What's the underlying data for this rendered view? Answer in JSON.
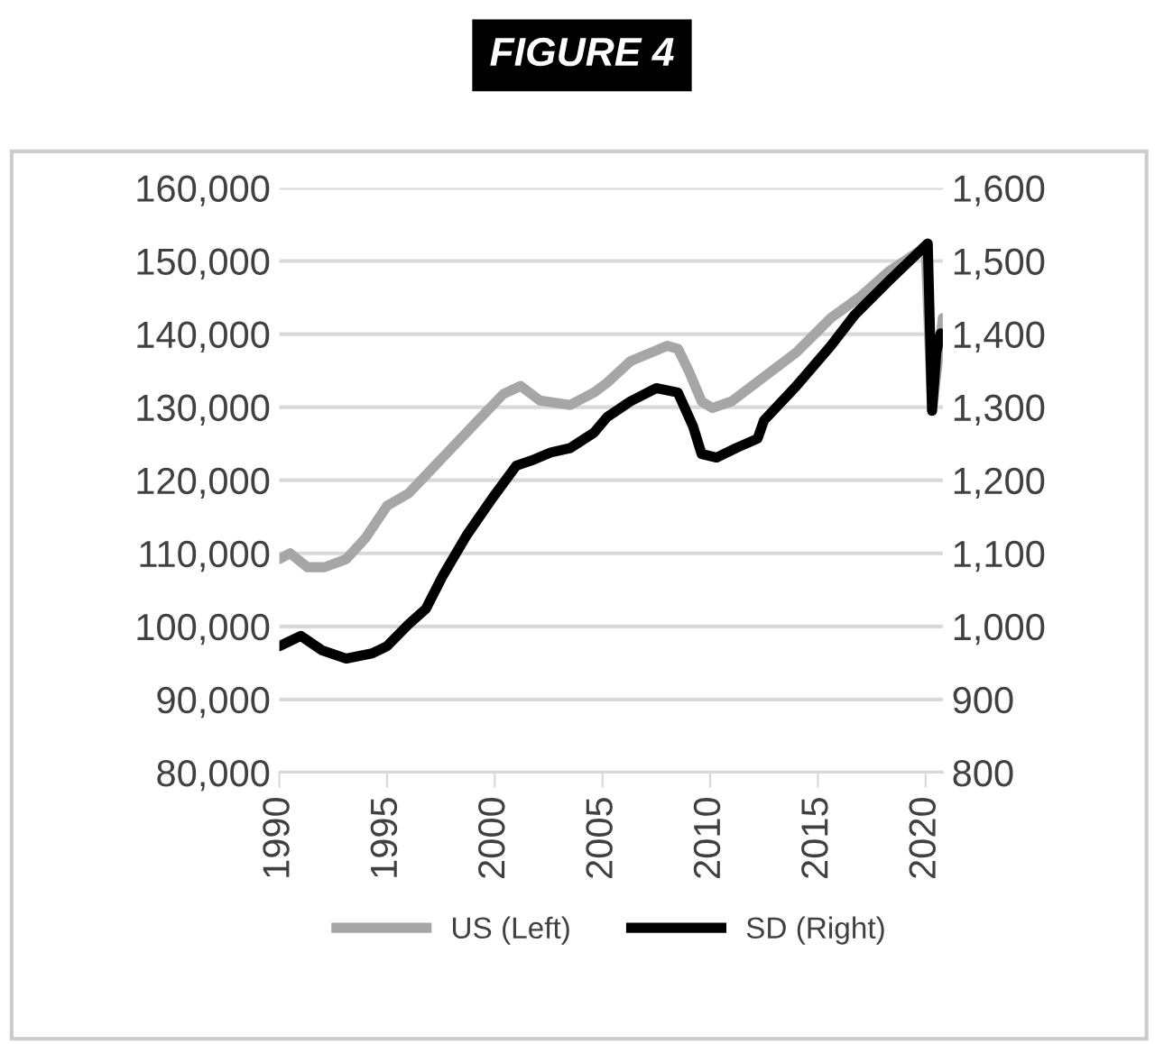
{
  "chart_data": {
    "type": "line",
    "title": "FIGURE 4",
    "xlim": [
      1990,
      2020.8
    ],
    "xticks": [
      1990,
      1995,
      2000,
      2005,
      2010,
      2015,
      2020
    ],
    "ylim": [
      80000,
      160000
    ],
    "yticks": [
      {
        "value": 80000,
        "label": "80,000"
      },
      {
        "value": 90000,
        "label": "90,000"
      },
      {
        "value": 100000,
        "label": "100,000"
      },
      {
        "value": 110000,
        "label": "110,000"
      },
      {
        "value": 120000,
        "label": "120,000"
      },
      {
        "value": 130000,
        "label": "130,000"
      },
      {
        "value": 140000,
        "label": "140,000"
      },
      {
        "value": 150000,
        "label": "150,000"
      },
      {
        "value": 160000,
        "label": "160,000"
      }
    ],
    "y2lim": [
      800,
      1600
    ],
    "y2ticks": [
      800,
      900,
      {
        "value": 1000,
        "label": "1,000"
      },
      {
        "value": 1100,
        "label": "1,100"
      },
      {
        "value": 1200,
        "label": "1,200"
      },
      {
        "value": 1300,
        "label": "1,300"
      },
      {
        "value": 1400,
        "label": "1,400"
      },
      {
        "value": 1500,
        "label": "1,500"
      },
      {
        "value": 1600,
        "label": "1,600"
      }
    ],
    "grid": "y",
    "legend": "bottom",
    "marker": "none",
    "line_style": "solid",
    "series": [
      {
        "name": "US (Left)",
        "color": "#a6a6a6",
        "x": [
          1990,
          1990.5,
          1991.3,
          1992.1,
          1993.1,
          1994.0,
          1995.0,
          1996.0,
          1996.9,
          1998.0,
          1999.1,
          2000.4,
          2001.2,
          2002.1,
          2003.5,
          2004.6,
          2005.2,
          2006.3,
          2008.0,
          2008.5,
          2009.0,
          2009.6,
          2010.1,
          2011.0,
          2012.3,
          2014.0,
          2015.6,
          2017.0,
          2018.3,
          2020.0,
          2020.3,
          2020.8
        ],
        "values": [
          109200,
          110000,
          108100,
          108100,
          109200,
          112100,
          116500,
          118200,
          121000,
          124400,
          127800,
          131800,
          132900,
          130900,
          130300,
          132000,
          133300,
          136300,
          138400,
          138000,
          135000,
          130800,
          129900,
          130800,
          133700,
          137500,
          142200,
          145200,
          148600,
          151900,
          129500,
          142200
        ]
      },
      {
        "name": "SD (Right)",
        "color": "#000000",
        "axis": "y2",
        "x": [
          1990,
          1991.0,
          1992.0,
          1993.1,
          1994.3,
          1995.0,
          1996.0,
          1996.8,
          1997.6,
          1998.7,
          1999.9,
          2001.0,
          2001.7,
          2002.6,
          2003.5,
          2004.6,
          2005.2,
          2006.3,
          2007.5,
          2008.5,
          2009.2,
          2009.6,
          2010.3,
          2011.2,
          2012.2,
          2012.5,
          2014.0,
          2015.6,
          2016.7,
          2018.3,
          2020.1,
          2020.3,
          2020.5,
          2020.7
        ],
        "values": [
          973,
          987,
          967,
          956,
          963,
          973,
          1003,
          1024,
          1070,
          1125,
          1176,
          1220,
          1227,
          1238,
          1244,
          1265,
          1286,
          1308,
          1326,
          1320,
          1274,
          1236,
          1231,
          1244,
          1257,
          1282,
          1329,
          1384,
          1426,
          1473,
          1524,
          1295,
          1375,
          1401
        ]
      }
    ]
  }
}
